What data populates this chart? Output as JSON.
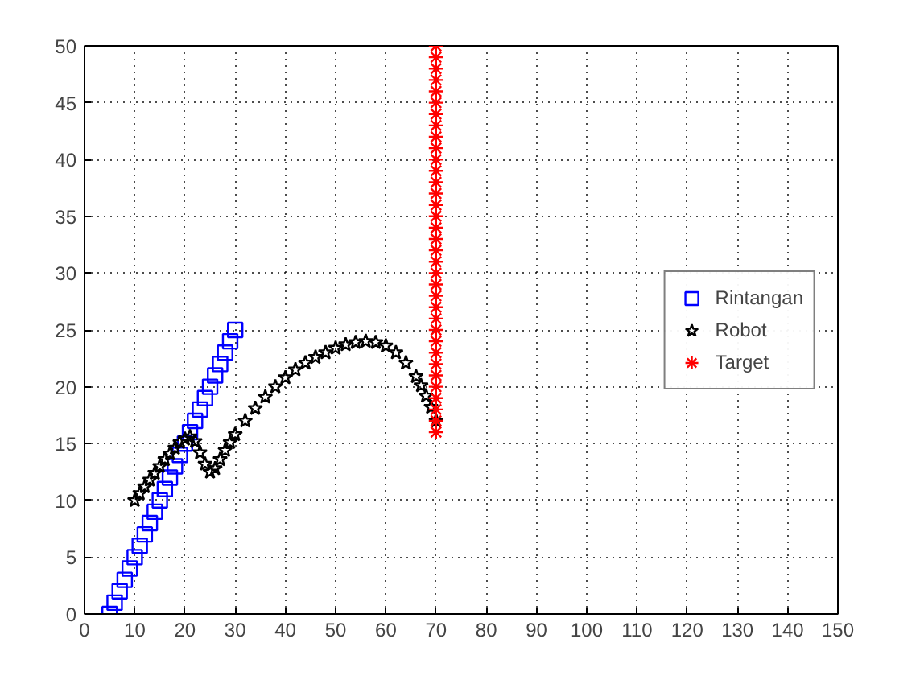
{
  "chart_data": {
    "type": "scatter",
    "xlim": [
      0,
      150
    ],
    "ylim": [
      0,
      50
    ],
    "xticks": [
      0,
      10,
      20,
      30,
      40,
      50,
      60,
      70,
      80,
      90,
      100,
      110,
      120,
      130,
      140,
      150
    ],
    "yticks": [
      0,
      5,
      10,
      15,
      20,
      25,
      30,
      35,
      40,
      45,
      50
    ],
    "grid": true,
    "legend": "right",
    "series": [
      {
        "name": "Rintangan",
        "color": "#0000ff",
        "marker": "square",
        "x": [
          5,
          6,
          7,
          8,
          9,
          10,
          11,
          12,
          13,
          14,
          15,
          16,
          17,
          18,
          19,
          20,
          21,
          22,
          23,
          24,
          25,
          26,
          27,
          28,
          29,
          30
        ],
        "values": [
          0,
          1,
          2,
          3,
          4,
          5,
          6,
          7,
          8,
          9,
          10,
          11,
          12,
          13,
          14,
          15,
          16,
          17,
          18,
          19,
          20,
          21,
          22,
          23,
          24,
          25
        ]
      },
      {
        "name": "Robot",
        "color": "#000000",
        "marker": "star",
        "x": [
          10,
          11,
          12,
          13,
          14,
          15,
          16,
          17,
          18,
          19,
          20,
          21,
          22,
          23,
          24,
          25,
          26,
          27,
          28,
          29,
          30,
          32,
          34,
          36,
          38,
          40,
          42,
          44,
          46,
          48,
          50,
          52,
          54,
          56,
          58,
          60,
          62,
          64,
          66,
          67,
          68,
          69,
          70
        ],
        "values": [
          10,
          10.6,
          11.2,
          11.8,
          12.4,
          13,
          13.6,
          14.1,
          14.6,
          15.1,
          15.4,
          15.6,
          15.2,
          14.2,
          13.2,
          12.5,
          12.8,
          13.6,
          14.4,
          15.1,
          15.8,
          17,
          18.1,
          19.1,
          20,
          20.8,
          21.5,
          22.1,
          22.6,
          23,
          23.4,
          23.7,
          23.9,
          24,
          23.9,
          23.6,
          23,
          22.1,
          20.9,
          20.1,
          19.2,
          18.2,
          17
        ]
      },
      {
        "name": "Target",
        "color": "#ff0000",
        "marker": "cross",
        "x": [
          70,
          70,
          70,
          70,
          70,
          70,
          70,
          70,
          70,
          70,
          70,
          70,
          70,
          70,
          70,
          70,
          70,
          70,
          70,
          70,
          70,
          70,
          70,
          70,
          70,
          70,
          70,
          70,
          70,
          70,
          70,
          70,
          70,
          70,
          70
        ],
        "values": [
          16,
          17,
          18,
          19,
          20,
          21,
          22,
          23,
          24,
          25,
          26,
          27,
          28,
          29,
          30,
          31,
          32,
          33,
          34,
          35,
          36,
          37,
          38,
          39,
          40,
          41,
          42,
          43,
          44,
          45,
          46,
          47,
          48,
          49,
          50
        ]
      }
    ]
  }
}
